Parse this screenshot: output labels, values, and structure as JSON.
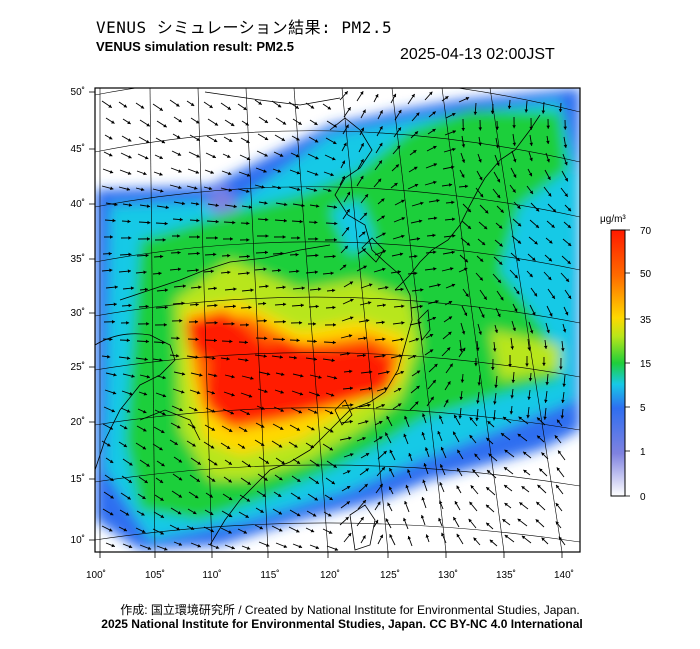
{
  "header": {
    "title_ja": "VENUS シミュレーション結果: PM2.5",
    "title_en": "VENUS simulation result: PM2.5",
    "timestamp": "2025-04-13 02:00JST"
  },
  "map": {
    "lat_ticks": [
      "50˚",
      "45˚",
      "40˚",
      "35˚",
      "30˚",
      "25˚",
      "20˚",
      "15˚",
      "10˚"
    ],
    "lon_ticks": [
      "100˚",
      "105˚",
      "110˚",
      "115˚",
      "120˚",
      "125˚",
      "130˚",
      "135˚",
      "140˚"
    ]
  },
  "colorbar": {
    "unit": "μg/m³",
    "ticks": [
      "70",
      "50",
      "35",
      "15",
      "5",
      "1",
      "0"
    ],
    "colors": {
      "c0": "#ffffff",
      "c1": "#7f82e0",
      "c5": "#2f6ef0",
      "c10": "#17c9e6",
      "c15": "#1fcf3a",
      "c25": "#b8e61a",
      "c35": "#ffd800",
      "c50": "#ff6a00",
      "c70": "#ff1a00"
    }
  },
  "footer": {
    "credit": "作成: 国立環境研究所 / Created by National Institute for Environmental Studies, Japan.",
    "copyright": "2025 National Institute for Environmental Studies, Japan. CC BY-NC 4.0 International"
  }
}
